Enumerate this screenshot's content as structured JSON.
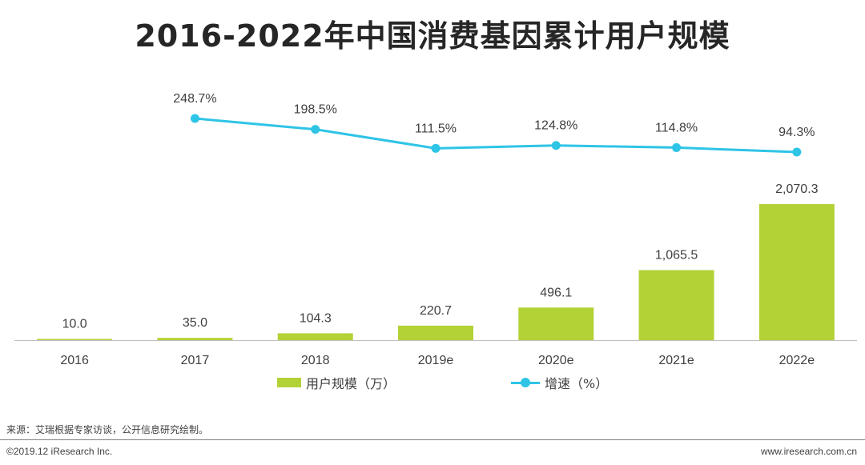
{
  "chart_data": {
    "type": "bar+line",
    "title": "2016-2022年中国消费基因累计用户规模",
    "categories": [
      "2016",
      "2017",
      "2018",
      "2019e",
      "2020e",
      "2021e",
      "2022e"
    ],
    "series": [
      {
        "name": "用户规模（万）",
        "type": "bar",
        "values": [
          10.0,
          35.0,
          104.3,
          220.7,
          496.1,
          1065.5,
          2070.3
        ],
        "labels": [
          "10.0",
          "35.0",
          "104.3",
          "220.7",
          "496.1",
          "1,065.5",
          "2,070.3"
        ]
      },
      {
        "name": "增速（%）",
        "type": "line",
        "values": [
          null,
          248.7,
          198.5,
          111.5,
          124.8,
          114.8,
          94.3
        ],
        "labels": [
          "",
          "248.7%",
          "198.5%",
          "111.5%",
          "124.8%",
          "114.8%",
          "94.3%"
        ]
      }
    ],
    "legend_position": "bottom",
    "colors": {
      "bar": "#b2d235",
      "line": "#2ec4e6"
    }
  },
  "source_text": "来源：艾瑞根据专家访谈，公开信息研究绘制。",
  "copyright": "©2019.12 iResearch Inc.",
  "website": "www.iresearch.com.cn"
}
